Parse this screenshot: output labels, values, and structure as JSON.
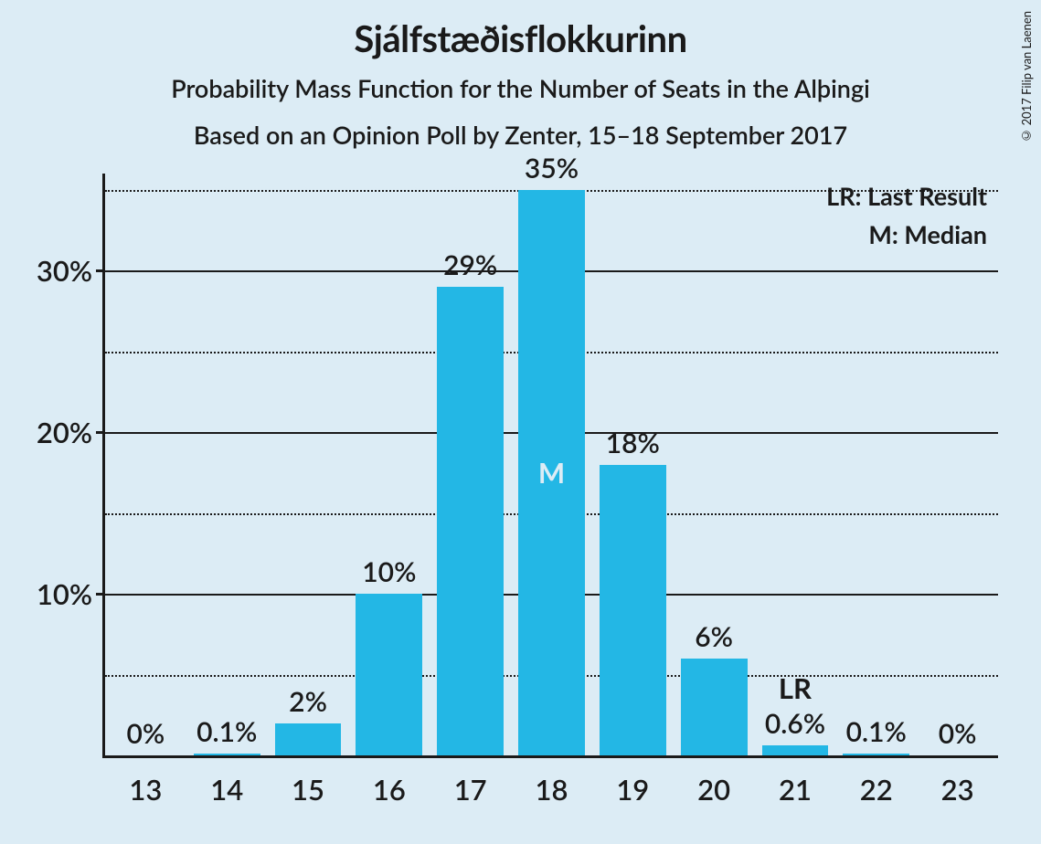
{
  "title": "Sjálfstæðisflokkurinn",
  "subtitle1": "Probability Mass Function for the Number of Seats in the Alþingi",
  "subtitle2": "Based on an Opinion Poll by Zenter, 15–18 September 2017",
  "copyright": "© 2017 Filip van Laenen",
  "legend": {
    "lr": "LR: Last Result",
    "m": "M: Median"
  },
  "chart": {
    "type": "bar",
    "background_color": "#dcecf5",
    "bar_color": "#23b7e5",
    "axis_color": "#1a1a1a",
    "grid_color": "#1a1a1a",
    "median_label_color": "#dcecf5",
    "y_max": 36,
    "y_major_ticks": [
      10,
      20,
      30
    ],
    "y_minor_ticks": [
      5,
      15,
      25,
      35
    ],
    "bar_width_ratio": 0.82,
    "title_fontsize": 40,
    "subtitle_fontsize": 27,
    "axis_label_fontsize": 31,
    "bar_label_fontsize": 30,
    "legend_fontsize": 27,
    "bars": [
      {
        "x": "13",
        "value": 0,
        "label": "0%"
      },
      {
        "x": "14",
        "value": 0.1,
        "label": "0.1%"
      },
      {
        "x": "15",
        "value": 2,
        "label": "2%"
      },
      {
        "x": "16",
        "value": 10,
        "label": "10%"
      },
      {
        "x": "17",
        "value": 29,
        "label": "29%"
      },
      {
        "x": "18",
        "value": 35,
        "label": "35%",
        "mark": "M",
        "mark_inside": true
      },
      {
        "x": "19",
        "value": 18,
        "label": "18%"
      },
      {
        "x": "20",
        "value": 6,
        "label": "6%"
      },
      {
        "x": "21",
        "value": 0.6,
        "label": "0.6%",
        "mark": "LR",
        "mark_inside": false
      },
      {
        "x": "22",
        "value": 0.1,
        "label": "0.1%"
      },
      {
        "x": "23",
        "value": 0,
        "label": "0%"
      }
    ]
  }
}
